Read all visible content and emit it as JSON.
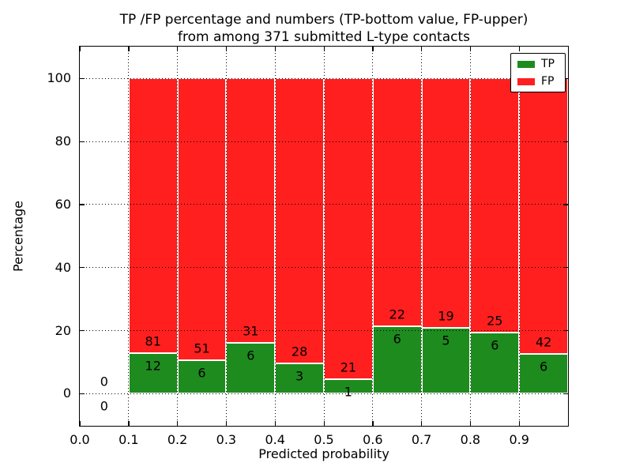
{
  "titles": {
    "line1": "TP /FP percentage and numbers (TP-bottom value, FP-upper)",
    "line2": "from among 371 submitted L-type contacts"
  },
  "axis_labels": {
    "x": "Predicted probability",
    "y": "Percentage"
  },
  "legend": {
    "position": "upper-right",
    "items": [
      {
        "label": "TP",
        "color": "#1e8b1e"
      },
      {
        "label": "FP",
        "color": "#ff1f1f"
      }
    ]
  },
  "chart_data": {
    "type": "bar",
    "stacked": true,
    "title": "TP /FP percentage and numbers (TP-bottom value, FP-upper)\nfrom among 371 submitted L-type contacts",
    "xlabel": "Predicted probability",
    "ylabel": "Percentage",
    "xlim": [
      0.0,
      1.0
    ],
    "ylim": [
      -10.2,
      110.1
    ],
    "x_tick_labels": [
      "0.0",
      "0.1",
      "0.2",
      "0.3",
      "0.4",
      "0.5",
      "0.6",
      "0.7",
      "0.8",
      "0.9"
    ],
    "y_tick_values": [
      0,
      20,
      40,
      60,
      80,
      100
    ],
    "grid": {
      "style": "dotted",
      "color": "#000000",
      "axes": "both"
    },
    "legend_position": "upper right",
    "colors": {
      "tp": "#1e8b1e",
      "fp": "#ff1f1f"
    },
    "value_semantics": "green segment height = TP/(TP+FP)*100 per bin, red fills to 100%; printed numbers are raw counts (TP bottom value, FP upper)",
    "total_submitted_contacts": 371,
    "bins": [
      {
        "x_start": 0.0,
        "x_end": 0.1,
        "tp": 0,
        "fp": 0,
        "tp_pct": 0.0
      },
      {
        "x_start": 0.1,
        "x_end": 0.2,
        "tp": 12,
        "fp": 81,
        "tp_pct": 12.9
      },
      {
        "x_start": 0.2,
        "x_end": 0.3,
        "tp": 6,
        "fp": 51,
        "tp_pct": 10.5
      },
      {
        "x_start": 0.3,
        "x_end": 0.4,
        "tp": 6,
        "fp": 31,
        "tp_pct": 16.2
      },
      {
        "x_start": 0.4,
        "x_end": 0.5,
        "tp": 3,
        "fp": 28,
        "tp_pct": 9.7
      },
      {
        "x_start": 0.5,
        "x_end": 0.6,
        "tp": 1,
        "fp": 21,
        "tp_pct": 4.5
      },
      {
        "x_start": 0.6,
        "x_end": 0.7,
        "tp": 6,
        "fp": 22,
        "tp_pct": 21.4
      },
      {
        "x_start": 0.7,
        "x_end": 0.8,
        "tp": 5,
        "fp": 19,
        "tp_pct": 20.8
      },
      {
        "x_start": 0.8,
        "x_end": 0.9,
        "tp": 6,
        "fp": 25,
        "tp_pct": 19.4
      },
      {
        "x_start": 0.9,
        "x_end": 1.0,
        "tp": 6,
        "fp": 42,
        "tp_pct": 12.5
      }
    ]
  }
}
